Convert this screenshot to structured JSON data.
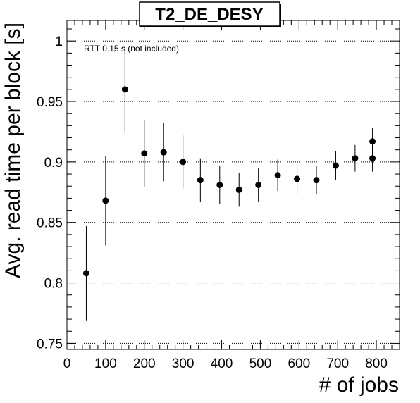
{
  "chart_data": {
    "type": "scatter",
    "title": "T2_DE_DESY",
    "xlabel": "# of jobs",
    "ylabel": "Avg. read time per block [s]",
    "annotation": "RTT 0.15 s (not included)",
    "xlim": [
      0,
      860
    ],
    "ylim": [
      0.745,
      1.017
    ],
    "x_ticks": [
      "0",
      "100",
      "200",
      "300",
      "400",
      "500",
      "600",
      "700",
      "800"
    ],
    "y_ticks": [
      "0.75",
      "0.8",
      "0.85",
      "0.9",
      "0.95",
      "1"
    ],
    "grid": "horizontal-dotted",
    "marker_color": "#000000",
    "points": [
      {
        "x": 50,
        "y": 0.808,
        "err": 0.039
      },
      {
        "x": 100,
        "y": 0.868,
        "err": 0.037
      },
      {
        "x": 150,
        "y": 0.96,
        "err": 0.036
      },
      {
        "x": 200,
        "y": 0.907,
        "err": 0.028
      },
      {
        "x": 250,
        "y": 0.908,
        "err": 0.024
      },
      {
        "x": 300,
        "y": 0.9,
        "err": 0.022
      },
      {
        "x": 345,
        "y": 0.885,
        "err": 0.018
      },
      {
        "x": 395,
        "y": 0.881,
        "err": 0.016
      },
      {
        "x": 445,
        "y": 0.877,
        "err": 0.014
      },
      {
        "x": 495,
        "y": 0.881,
        "err": 0.014
      },
      {
        "x": 545,
        "y": 0.889,
        "err": 0.013
      },
      {
        "x": 595,
        "y": 0.886,
        "err": 0.013
      },
      {
        "x": 645,
        "y": 0.885,
        "err": 0.012
      },
      {
        "x": 695,
        "y": 0.897,
        "err": 0.012
      },
      {
        "x": 745,
        "y": 0.903,
        "err": 0.011
      },
      {
        "x": 790,
        "y": 0.903,
        "err": 0.011
      },
      {
        "x": 790,
        "y": 0.917,
        "err": 0.011
      }
    ]
  }
}
